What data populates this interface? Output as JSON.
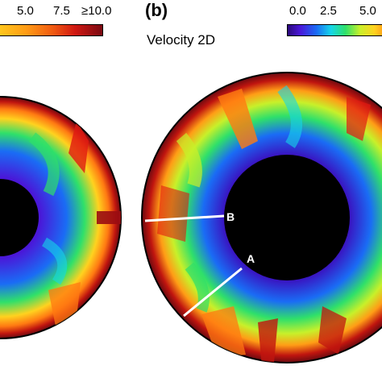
{
  "panel_a": {
    "colorbar_ticks": [
      "5.0",
      "7.5",
      "≥10.0"
    ]
  },
  "panel_b": {
    "label": "(b)",
    "colorbar_ticks": [
      "0.0",
      "2.5",
      "5.0"
    ],
    "title": "Velocity 2D",
    "marker_a": "A",
    "marker_b": "B"
  },
  "colors": {
    "scale": [
      "#2b0a7a",
      "#4a17d8",
      "#1a6cf5",
      "#16d6e8",
      "#2fe06a",
      "#c8f02a",
      "#ffd21f",
      "#ff7a12",
      "#e01a12",
      "#7a0a12"
    ],
    "core": "#000000",
    "annotation_line": "#ffffff"
  }
}
